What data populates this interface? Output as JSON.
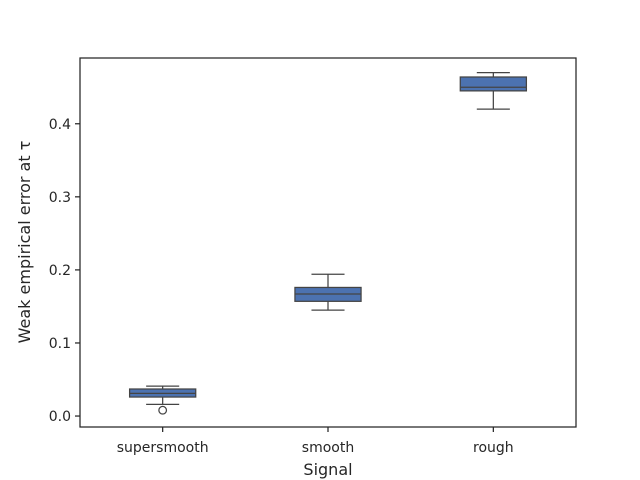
{
  "chart_data": {
    "type": "box",
    "title": "",
    "xlabel": "Signal",
    "ylabel": "Weak empirical error at τ",
    "categories": [
      "supersmooth",
      "smooth",
      "rough"
    ],
    "ylim": [
      -0.015,
      0.49
    ],
    "yticks": [
      0.0,
      0.1,
      0.2,
      0.3,
      0.4
    ],
    "ytick_labels": [
      "0.0",
      "0.1",
      "0.2",
      "0.3",
      "0.4"
    ],
    "boxes": [
      {
        "category": "supersmooth",
        "whislo": 0.016,
        "q1": 0.026,
        "med": 0.031,
        "q3": 0.037,
        "whishi": 0.041,
        "fliers": [
          0.008
        ]
      },
      {
        "category": "smooth",
        "whislo": 0.145,
        "q1": 0.157,
        "med": 0.167,
        "q3": 0.176,
        "whishi": 0.194,
        "fliers": []
      },
      {
        "category": "rough",
        "whislo": 0.42,
        "q1": 0.445,
        "med": 0.45,
        "q3": 0.464,
        "whishi": 0.47,
        "fliers": []
      }
    ],
    "colors": {
      "box_fill": "#4c72b0",
      "line": "#444444",
      "axis": "#262626"
    },
    "grid": false,
    "legend": "none"
  }
}
